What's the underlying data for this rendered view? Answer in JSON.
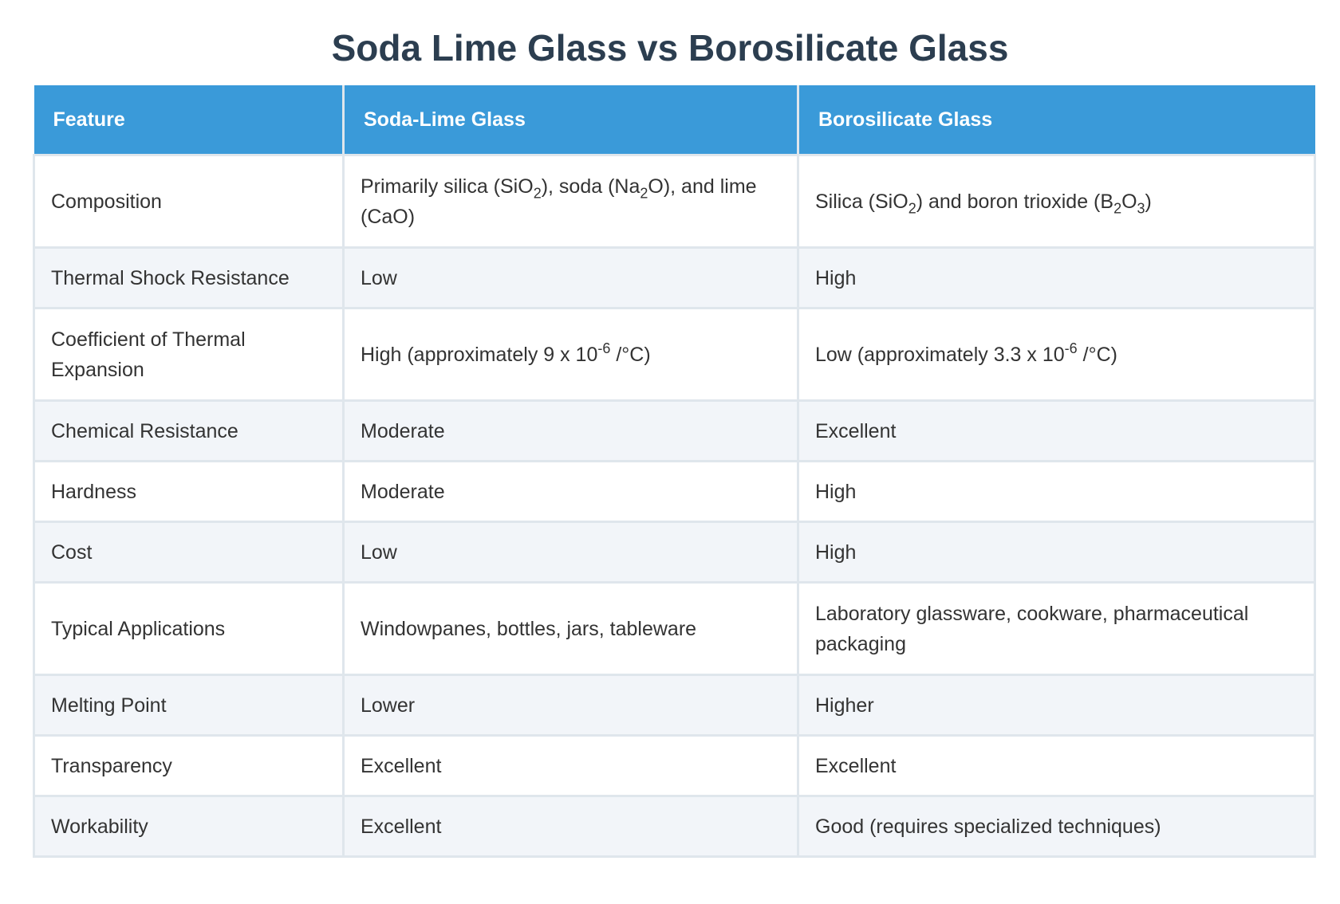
{
  "title": "Soda Lime Glass vs Borosilicate Glass",
  "headers": [
    "Feature",
    "Soda-Lime Glass",
    "Borosilicate Glass"
  ],
  "rows": [
    {
      "feature": "Composition",
      "soda_lime": {
        "a": "Primarily silica (SiO",
        "s1": "2",
        "b": "), soda (Na",
        "s2": "2",
        "c": "O), and lime (CaO)"
      },
      "borosilicate": {
        "a": "Silica (SiO",
        "s1": "2",
        "b": ") and boron trioxide (B",
        "s2": "2",
        "c": "O",
        "s3": "3",
        "d": ")"
      }
    },
    {
      "feature": "Thermal Shock Resistance",
      "soda_lime": "Low",
      "borosilicate": "High"
    },
    {
      "feature": "Coefficient of Thermal Expansion",
      "soda_lime": {
        "a": "High (approximately 9 x 10",
        "sup": "-6",
        "b": " /°C)"
      },
      "borosilicate": {
        "a": "Low (approximately 3.3 x 10",
        "sup": "-6",
        "b": " /°C)"
      }
    },
    {
      "feature": "Chemical Resistance",
      "soda_lime": "Moderate",
      "borosilicate": "Excellent"
    },
    {
      "feature": "Hardness",
      "soda_lime": "Moderate",
      "borosilicate": "High"
    },
    {
      "feature": "Cost",
      "soda_lime": "Low",
      "borosilicate": "High"
    },
    {
      "feature": "Typical Applications",
      "soda_lime": "Windowpanes, bottles, jars, tableware",
      "borosilicate": "Laboratory glassware, cookware, pharmaceutical packaging"
    },
    {
      "feature": "Melting Point",
      "soda_lime": "Lower",
      "borosilicate": "Higher"
    },
    {
      "feature": "Transparency",
      "soda_lime": "Excellent",
      "borosilicate": "Excellent"
    },
    {
      "feature": "Workability",
      "soda_lime": "Excellent",
      "borosilicate": "Good (requires specialized techniques)"
    }
  ]
}
